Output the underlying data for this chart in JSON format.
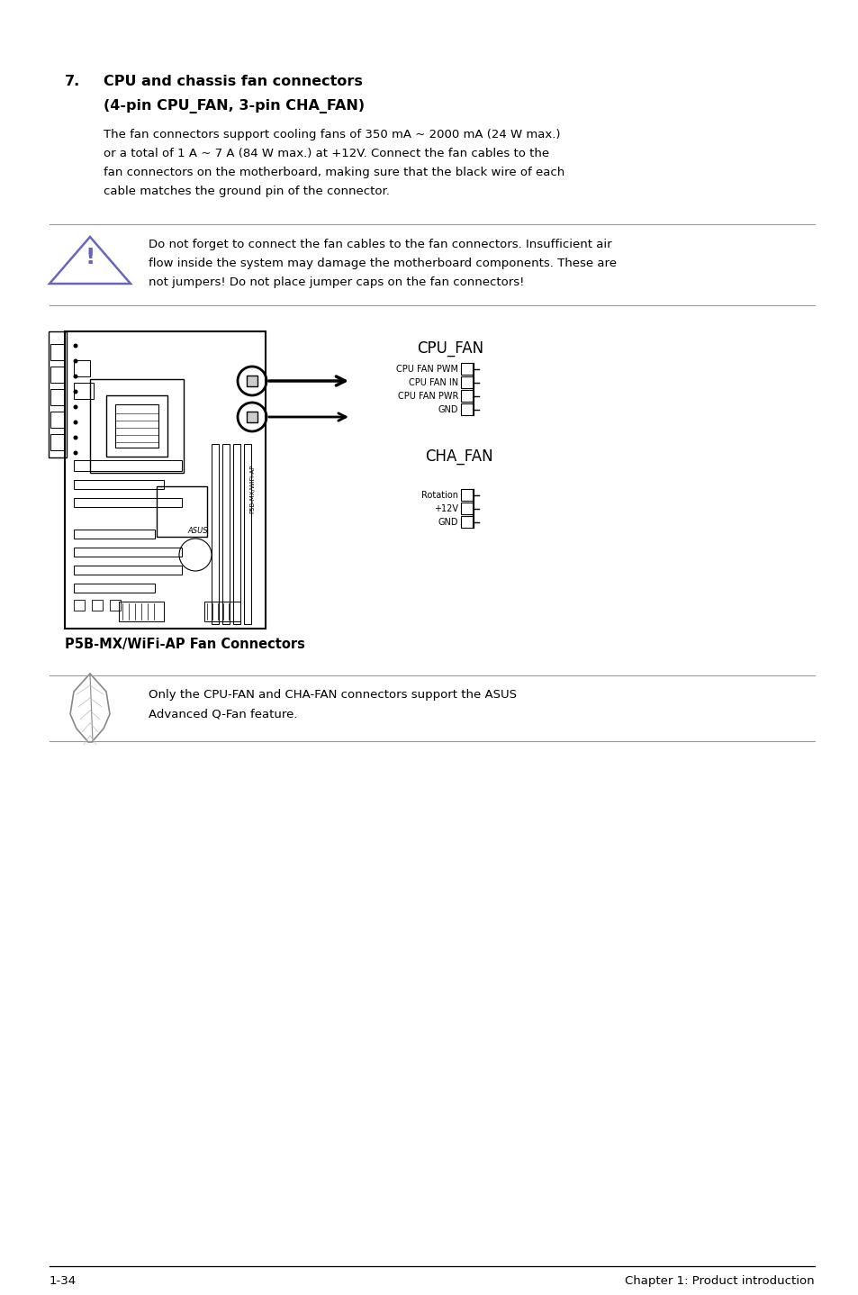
{
  "bg_color": "#ffffff",
  "text_color": "#000000",
  "section_num": "7.",
  "section_title_line1": "CPU and chassis fan connectors",
  "section_title_line2": "(4-pin CPU_FAN, 3-pin CHA_FAN)",
  "body_lines": [
    "The fan connectors support cooling fans of 350 mA ~ 2000 mA (24 W max.)",
    "or a total of 1 A ~ 7 A (84 W max.) at +12V. Connect the fan cables to the",
    "fan connectors on the motherboard, making sure that the black wire of each",
    "cable matches the ground pin of the connector."
  ],
  "warning_lines": [
    "Do not forget to connect the fan cables to the fan connectors. Insufficient air",
    "flow inside the system may damage the motherboard components. These are",
    "not jumpers! Do not place jumper caps on the fan connectors!"
  ],
  "cpu_fan_label": "CPU_FAN",
  "cpu_fan_pins": [
    "CPU FAN PWM",
    "CPU FAN IN",
    "CPU FAN PWR",
    "GND"
  ],
  "cha_fan_label": "CHA_FAN",
  "cha_fan_pins": [
    "Rotation",
    "+12V",
    "GND"
  ],
  "diagram_caption": "P5B-MX/WiFi-AP Fan Connectors",
  "note_lines": [
    "Only the CPU-FAN and CHA-FAN connectors support the ASUS",
    "Advanced Q-Fan feature."
  ],
  "footer_left": "1-34",
  "footer_right": "Chapter 1: Product introduction",
  "warn_icon_color": "#6666bb",
  "line_color": "#aaaaaa"
}
